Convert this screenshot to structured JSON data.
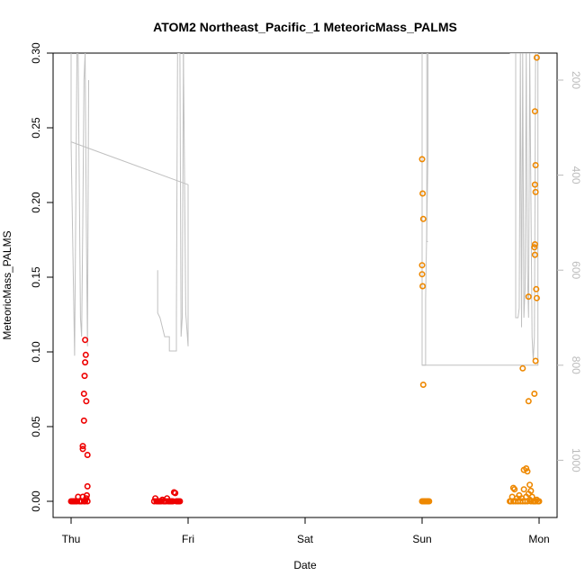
{
  "chart_data": {
    "type": "scatter",
    "title": "ATOM2 Northeast_Pacific_1 MeteoricMass_PALMS",
    "xlabel": "Date",
    "ylabel": "MeteoricMass_PALMS",
    "x_ticks": [
      "Thu",
      "Fri",
      "Sat",
      "Sun",
      "Mon"
    ],
    "ylim": [
      0,
      0.3
    ],
    "y_ticks": [
      "0.00",
      "0.05",
      "0.10",
      "0.15",
      "0.20",
      "0.25",
      "0.30"
    ],
    "y2_ticks": [
      "200",
      "400",
      "600",
      "800",
      "1000"
    ],
    "y2_reversed": true,
    "y2_color": "#bbbbbb",
    "grid": false,
    "series": [
      {
        "color": "#ee0000",
        "points": [
          [
            0.0,
            0
          ],
          [
            0.01,
            0
          ],
          [
            0.02,
            0
          ],
          [
            0.03,
            0
          ],
          [
            0.04,
            0
          ],
          [
            0.05,
            0
          ],
          [
            0.06,
            0.003
          ],
          [
            0.07,
            0
          ],
          [
            0.08,
            0
          ],
          [
            0.09,
            0
          ],
          [
            0.1,
            0.003
          ],
          [
            0.11,
            0
          ],
          [
            0.12,
            0
          ],
          [
            0.13,
            0.002
          ],
          [
            0.14,
            0
          ],
          [
            0.1,
            0.037
          ],
          [
            0.1,
            0.035
          ],
          [
            0.11,
            0.054
          ],
          [
            0.11,
            0.072
          ],
          [
            0.115,
            0.084
          ],
          [
            0.12,
            0.093
          ],
          [
            0.125,
            0.098
          ],
          [
            0.12,
            0.108
          ],
          [
            0.13,
            0.067
          ],
          [
            0.14,
            0.031
          ],
          [
            0.14,
            0.01
          ],
          [
            0.135,
            0.004
          ],
          [
            0.71,
            0
          ],
          [
            0.72,
            0.002
          ],
          [
            0.73,
            0
          ],
          [
            0.74,
            0
          ],
          [
            0.75,
            0
          ],
          [
            0.76,
            0
          ],
          [
            0.77,
            0
          ],
          [
            0.78,
            0.001
          ],
          [
            0.79,
            0
          ],
          [
            0.8,
            0
          ],
          [
            0.81,
            0
          ],
          [
            0.82,
            0.002
          ],
          [
            0.83,
            0
          ],
          [
            0.84,
            0
          ],
          [
            0.85,
            0
          ],
          [
            0.86,
            0
          ],
          [
            0.87,
            0
          ],
          [
            0.88,
            0.006
          ],
          [
            0.89,
            0.0055
          ],
          [
            0.9,
            0
          ],
          [
            0.91,
            0
          ],
          [
            0.92,
            0
          ],
          [
            0.93,
            0
          ]
        ]
      },
      {
        "color": "#ee8800",
        "points": [
          [
            3.0,
            0
          ],
          [
            3.01,
            0
          ],
          [
            3.02,
            0
          ],
          [
            3.03,
            0
          ],
          [
            3.04,
            0
          ],
          [
            3.05,
            0
          ],
          [
            3.06,
            0
          ],
          [
            3.0,
            0.229
          ],
          [
            3.005,
            0.206
          ],
          [
            3.01,
            0.189
          ],
          [
            3.0,
            0.158
          ],
          [
            3.0,
            0.152
          ],
          [
            3.005,
            0.144
          ],
          [
            3.01,
            0.078
          ],
          [
            3.75,
            0
          ],
          [
            3.76,
            0
          ],
          [
            3.77,
            0.003
          ],
          [
            3.78,
            0
          ],
          [
            3.79,
            0.008
          ],
          [
            3.8,
            0
          ],
          [
            3.81,
            0.002
          ],
          [
            3.82,
            0
          ],
          [
            3.83,
            0.004
          ],
          [
            3.84,
            0
          ],
          [
            3.85,
            0.002
          ],
          [
            3.86,
            0
          ],
          [
            3.87,
            0.008
          ],
          [
            3.88,
            0
          ],
          [
            3.89,
            0.003
          ],
          [
            3.9,
            0
          ],
          [
            3.91,
            0.005
          ],
          [
            3.92,
            0.001
          ],
          [
            3.93,
            0
          ],
          [
            3.94,
            0.003
          ],
          [
            3.95,
            0
          ],
          [
            3.96,
            0
          ],
          [
            3.97,
            0
          ],
          [
            3.98,
            0.001
          ],
          [
            3.99,
            0
          ],
          [
            4.0,
            0
          ],
          [
            3.78,
            0.009
          ],
          [
            3.87,
            0.021
          ],
          [
            3.89,
            0.022
          ],
          [
            3.9,
            0.02
          ],
          [
            3.92,
            0.011
          ],
          [
            3.93,
            0.007
          ],
          [
            3.91,
            0.067
          ],
          [
            3.86,
            0.089
          ],
          [
            3.91,
            0.137
          ],
          [
            3.96,
            0.072
          ],
          [
            3.97,
            0.094
          ],
          [
            3.975,
            0.142
          ],
          [
            3.98,
            0.136
          ],
          [
            3.965,
            0.165
          ],
          [
            3.96,
            0.17
          ],
          [
            3.965,
            0.172
          ],
          [
            3.97,
            0.207
          ],
          [
            3.965,
            0.212
          ],
          [
            3.97,
            0.225
          ],
          [
            3.965,
            0.261
          ],
          [
            3.98,
            0.297
          ]
        ]
      }
    ],
    "altitude_trace": {
      "color": "#c0c0c0",
      "segments": [
        [
          [
            0.0,
            100
          ],
          [
            0.0,
            330
          ],
          [
            0.02,
            630
          ],
          [
            0.03,
            780
          ],
          [
            0.04,
            470
          ],
          [
            0.05,
            100
          ]
        ],
        [
          [
            0.06,
            100
          ],
          [
            0.08,
            700
          ],
          [
            0.09,
            740
          ],
          [
            0.1,
            500
          ],
          [
            0.11,
            200
          ],
          [
            0.12,
            100
          ]
        ],
        [
          [
            0.12,
            100
          ],
          [
            0.13,
            500
          ],
          [
            0.14,
            760
          ],
          [
            0.15,
            200
          ]
        ],
        [
          [
            0.0,
            330
          ],
          [
            1.0,
            420
          ],
          [
            1.0,
            760
          ],
          [
            0.98,
            690
          ],
          [
            0.96,
            100
          ]
        ],
        [
          [
            0.74,
            600
          ],
          [
            0.74,
            690
          ],
          [
            0.76,
            700
          ],
          [
            0.8,
            740
          ],
          [
            0.84,
            740
          ],
          [
            0.84,
            770
          ],
          [
            0.9,
            770
          ],
          [
            0.9,
            700
          ],
          [
            0.91,
            100
          ],
          [
            0.93,
            100
          ],
          [
            0.94,
            740
          ],
          [
            0.95,
            700
          ],
          [
            0.96,
            100
          ]
        ],
        [
          [
            3.0,
            100
          ],
          [
            3.0,
            800
          ],
          [
            3.03,
            800
          ],
          [
            3.03,
            660
          ],
          [
            3.05,
            360
          ],
          [
            3.05,
            100
          ]
        ],
        [
          [
            3.04,
            100
          ],
          [
            3.04,
            540
          ],
          [
            3.05,
            540
          ]
        ],
        [
          [
            3.0,
            800
          ],
          [
            3.99,
            800
          ],
          [
            3.99,
            100
          ],
          [
            3.8,
            100
          ],
          [
            3.8,
            700
          ],
          [
            3.82,
            700
          ],
          [
            3.83,
            680
          ],
          [
            3.84,
            100
          ],
          [
            3.85,
            720
          ],
          [
            3.86,
            100
          ],
          [
            3.87,
            700
          ],
          [
            3.88,
            640
          ],
          [
            3.89,
            100
          ],
          [
            3.9,
            600
          ],
          [
            3.91,
            700
          ],
          [
            3.92,
            100
          ],
          [
            3.94,
            740
          ],
          [
            3.95,
            790
          ],
          [
            3.96,
            740
          ],
          [
            3.97,
            100
          ],
          [
            3.75,
            100
          ]
        ]
      ]
    }
  }
}
